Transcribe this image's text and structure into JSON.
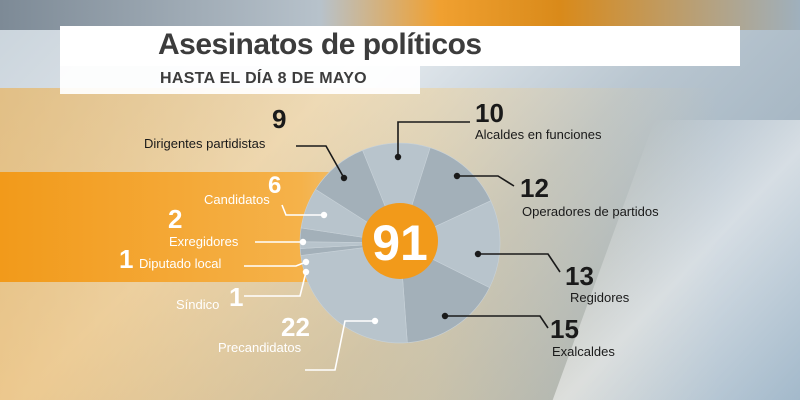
{
  "header": {
    "title": "Asesinatos de políticos",
    "subtitle": "HASTA EL DÍA 8 DE MAYO"
  },
  "colors": {
    "orange": "#f29a1a",
    "pie_light": "#b8c4cc",
    "pie_dark": "#a3b0b9",
    "text_dark": "#1a1a1a",
    "text_white": "#ffffff"
  },
  "chart_data": {
    "type": "pie",
    "total": 91,
    "total_label": "91",
    "slices": [
      {
        "label": "Alcaldes en funciones",
        "value": 10,
        "value_label": "10"
      },
      {
        "label": "Operadores de partidos",
        "value": 12,
        "value_label": "12"
      },
      {
        "label": "Regidores",
        "value": 13,
        "value_label": "13"
      },
      {
        "label": "Exalcaldes",
        "value": 15,
        "value_label": "15"
      },
      {
        "label": "Precandidatos",
        "value": 22,
        "value_label": "22"
      },
      {
        "label": "Síndico",
        "value": 1,
        "value_label": "1"
      },
      {
        "label": "Diputado local",
        "value": 1,
        "value_label": "1"
      },
      {
        "label": "Exregidores",
        "value": 2,
        "value_label": "2"
      },
      {
        "label": "Candidatos",
        "value": 6,
        "value_label": "6"
      },
      {
        "label": "Dirigentes partidistas",
        "value": 9,
        "value_label": "9"
      }
    ]
  }
}
